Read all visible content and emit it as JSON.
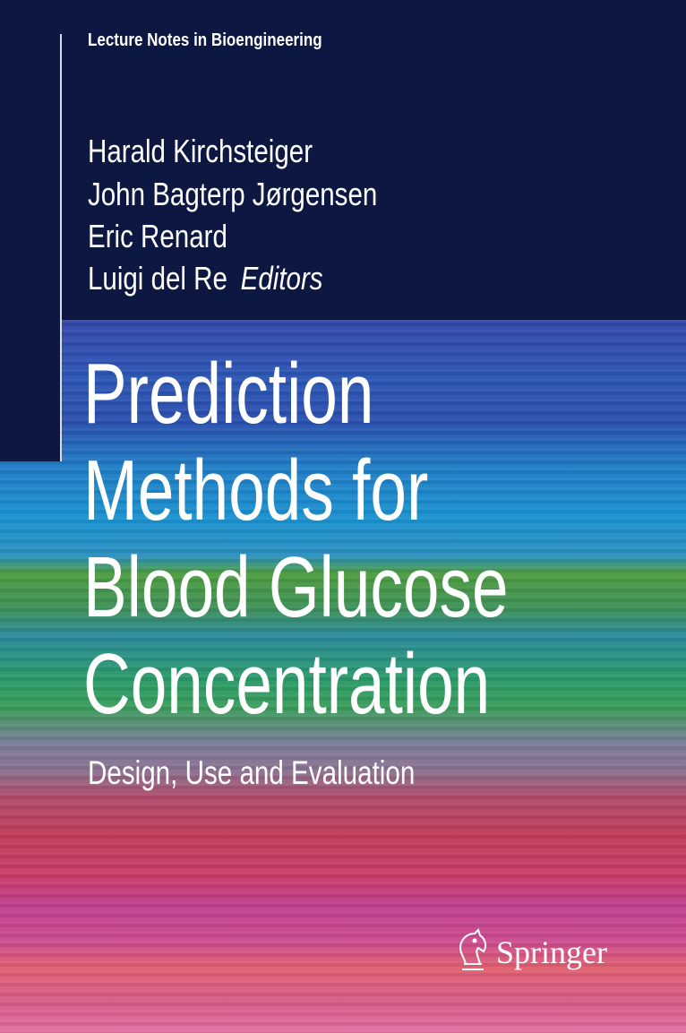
{
  "series": "Lecture Notes in Bioengineering",
  "editors": [
    "Harald Kirchsteiger",
    "John Bagterp Jørgensen",
    "Eric Renard",
    "Luigi del Re"
  ],
  "editors_role": "Editors",
  "title_lines": [
    "Prediction",
    "Methods for",
    "Blood Glucose",
    "Concentration"
  ],
  "subtitle": "Design, Use and Evaluation",
  "publisher": {
    "name": "Springer",
    "logo_icon": "springer-horse-icon"
  },
  "colors": {
    "navy": "#0c1742",
    "text": "#ffffff"
  }
}
